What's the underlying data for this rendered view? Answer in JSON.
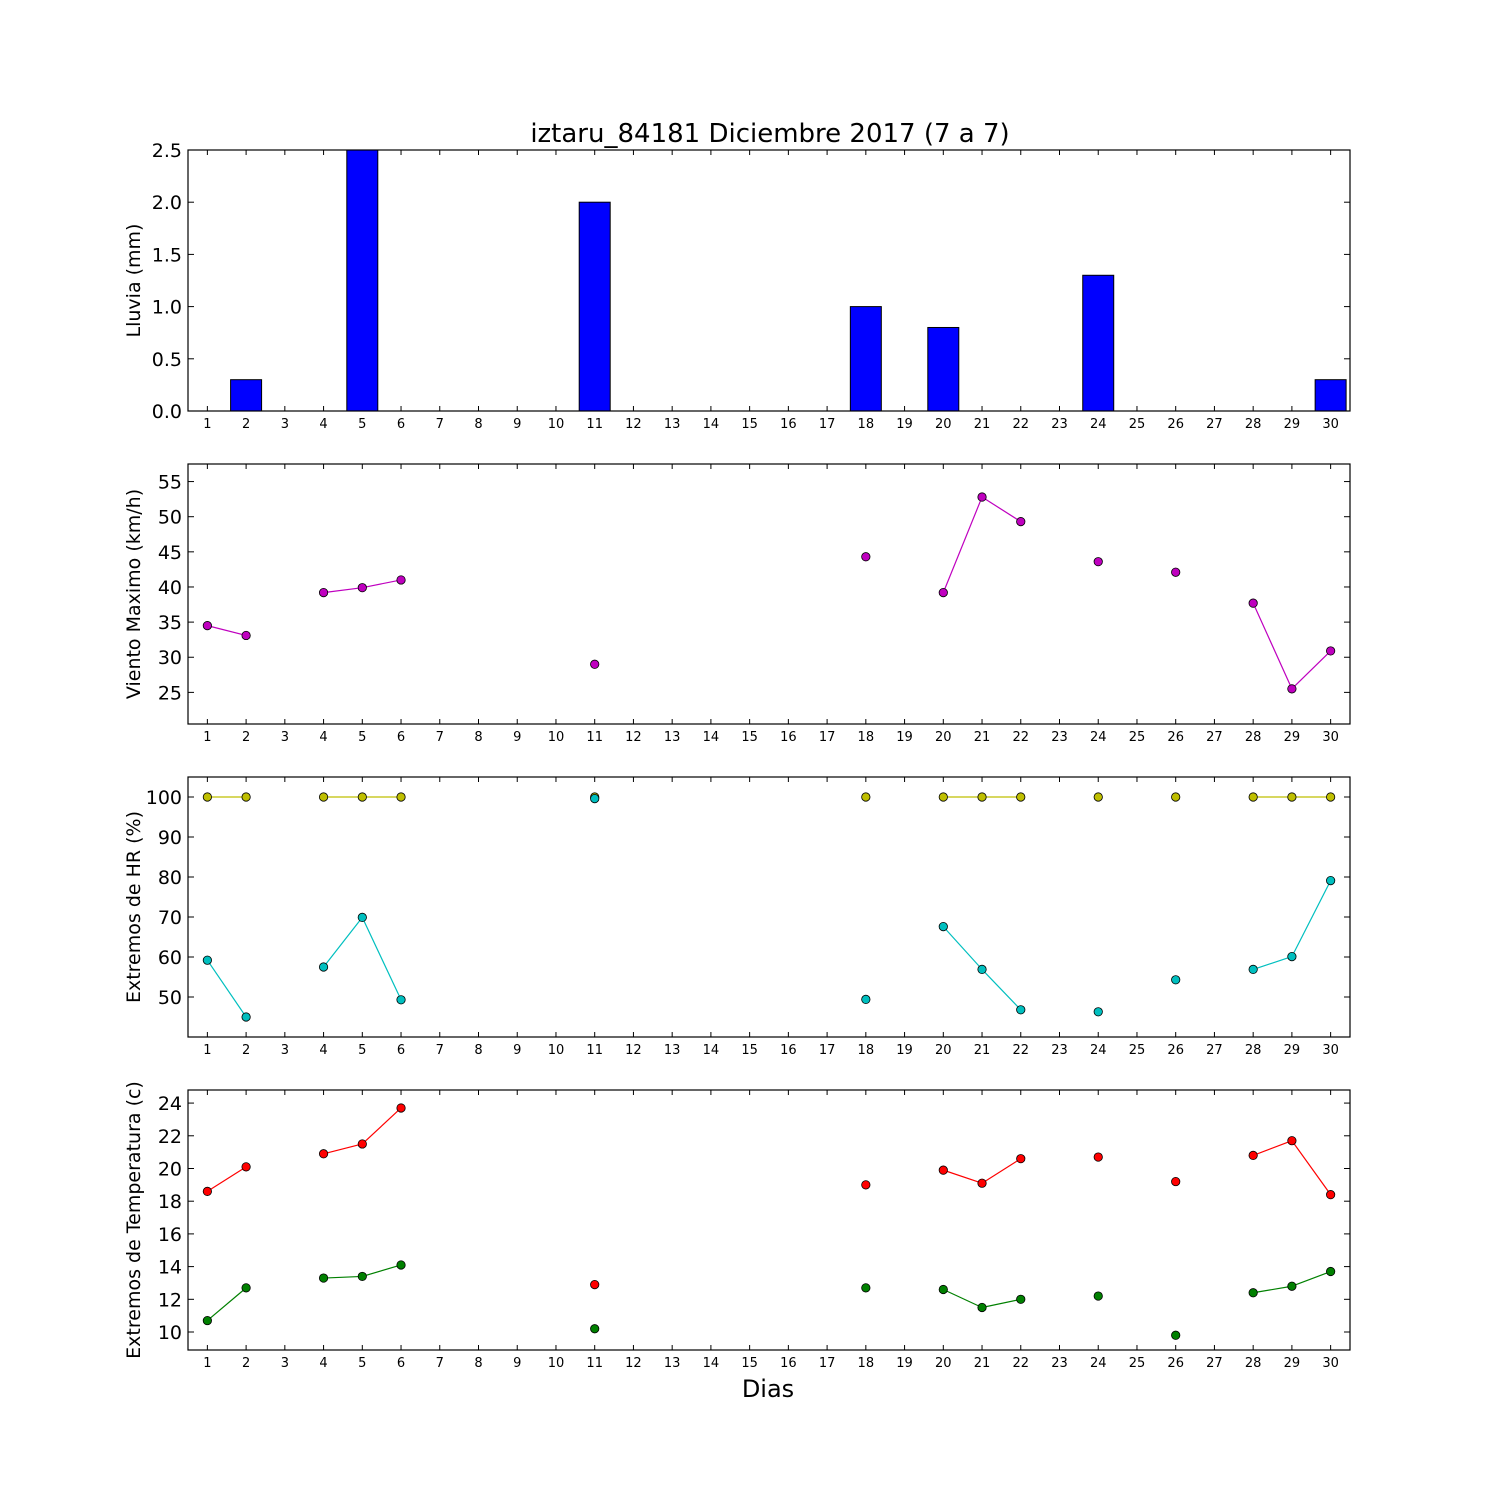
{
  "chart_data": {
    "title": "iztaru_84181 Diciembre 2017  (7 a 7)",
    "xlabel": "Dias",
    "x_ticks": [
      1,
      2,
      3,
      4,
      5,
      6,
      7,
      8,
      9,
      10,
      11,
      12,
      13,
      14,
      15,
      16,
      17,
      18,
      19,
      20,
      21,
      22,
      23,
      24,
      25,
      26,
      27,
      28,
      29,
      30
    ],
    "xlim": [
      0.5,
      30.5
    ],
    "panels": [
      {
        "type": "bar",
        "ylabel": "Lluvia (mm)",
        "ylim": [
          0,
          2.5
        ],
        "yticks": [
          "0.0",
          "0.5",
          "1.0",
          "1.5",
          "2.0",
          "2.5"
        ],
        "series": [
          {
            "color": "#0000ff",
            "x": [
              1,
              2,
              3,
              4,
              5,
              6,
              7,
              8,
              9,
              10,
              11,
              12,
              13,
              14,
              15,
              16,
              17,
              18,
              19,
              20,
              21,
              22,
              23,
              24,
              25,
              26,
              27,
              28,
              29,
              30
            ],
            "values": [
              0,
              0.3,
              0,
              0,
              2.5,
              0,
              0,
              0,
              0,
              0,
              2.0,
              0,
              0,
              0,
              0,
              0,
              0,
              1.0,
              0,
              0.8,
              0,
              0,
              0,
              1.3,
              0,
              0,
              0,
              0,
              0,
              0.3
            ]
          }
        ]
      },
      {
        "type": "line",
        "ylabel": "Viento Maximo (km/h)",
        "ylim": [
          20.5,
          57.5
        ],
        "yticks": [
          "25",
          "30",
          "35",
          "40",
          "45",
          "50",
          "55"
        ],
        "series": [
          {
            "color": "#bf00bf",
            "x": [
              1,
              2,
              4,
              5,
              6,
              11,
              18,
              20,
              21,
              22,
              24,
              26,
              28,
              29,
              30
            ],
            "values": [
              34.5,
              33.1,
              39.2,
              39.9,
              41.0,
              29.0,
              44.3,
              39.2,
              52.8,
              49.3,
              43.6,
              42.1,
              37.7,
              25.5,
              30.9
            ]
          }
        ]
      },
      {
        "type": "line",
        "ylabel": "Extremos de HR (%)",
        "ylim": [
          40,
          105
        ],
        "yticks": [
          "50",
          "60",
          "70",
          "80",
          "90",
          "100"
        ],
        "series": [
          {
            "color": "#bfbf00",
            "x": [
              1,
              2,
              4,
              5,
              6,
              11,
              18,
              20,
              21,
              22,
              24,
              26,
              28,
              29,
              30
            ],
            "values": [
              100,
              100,
              100,
              100,
              100,
              100,
              100,
              100,
              100,
              100,
              100,
              100,
              100,
              100,
              100
            ]
          },
          {
            "color": "#00bfbf",
            "x": [
              1,
              2,
              4,
              5,
              6,
              11,
              18,
              20,
              21,
              22,
              24,
              26,
              28,
              29,
              30
            ],
            "values": [
              59.2,
              45.0,
              57.5,
              69.9,
              49.3,
              99.6,
              49.4,
              67.6,
              56.9,
              46.8,
              46.3,
              54.3,
              56.9,
              60.1,
              79.1
            ]
          }
        ]
      },
      {
        "type": "line",
        "ylabel": "Extremos de Temperatura (c)",
        "ylim": [
          8.9,
          24.8
        ],
        "yticks": [
          "10",
          "12",
          "14",
          "16",
          "18",
          "20",
          "22",
          "24"
        ],
        "series": [
          {
            "color": "#ff0000",
            "x": [
              1,
              2,
              4,
              5,
              6,
              11,
              18,
              20,
              21,
              22,
              24,
              26,
              28,
              29,
              30
            ],
            "values": [
              18.6,
              20.1,
              20.9,
              21.5,
              23.7,
              12.9,
              19.0,
              19.9,
              19.1,
              20.6,
              20.7,
              19.2,
              20.8,
              21.7,
              18.4
            ]
          },
          {
            "color": "#008000",
            "x": [
              1,
              2,
              4,
              5,
              6,
              11,
              18,
              20,
              21,
              22,
              24,
              26,
              28,
              29,
              30
            ],
            "values": [
              10.7,
              12.7,
              13.3,
              13.4,
              14.1,
              10.2,
              12.7,
              12.6,
              11.5,
              12.0,
              12.2,
              9.8,
              12.4,
              12.8,
              13.7
            ]
          }
        ]
      }
    ]
  }
}
